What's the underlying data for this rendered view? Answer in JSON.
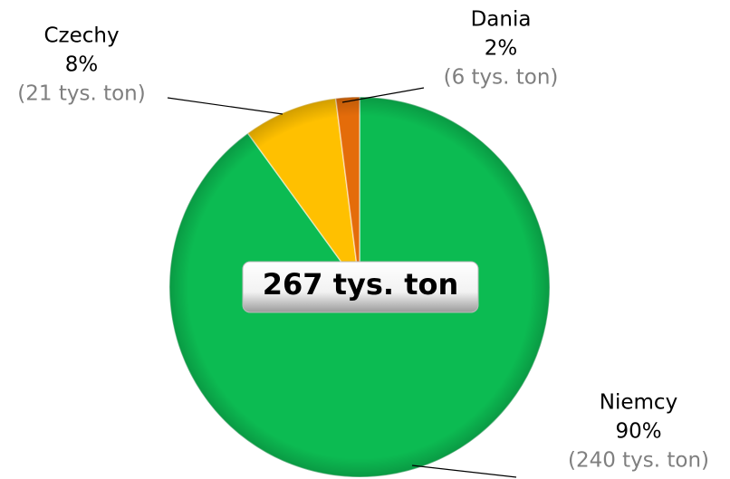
{
  "chart_data": {
    "type": "pie",
    "categories": [
      "Niemcy",
      "Czechy",
      "Dania"
    ],
    "values": [
      90,
      8,
      2
    ],
    "value_labels": [
      "90%",
      "8%",
      "2%"
    ],
    "amount_labels": [
      "(240 tys. ton)",
      "(21 tys. ton)",
      "(6 tys. ton)"
    ],
    "colors": [
      "#0cbb52",
      "#ffc000",
      "#e46c0a"
    ],
    "total_label": "267 tys. ton"
  }
}
